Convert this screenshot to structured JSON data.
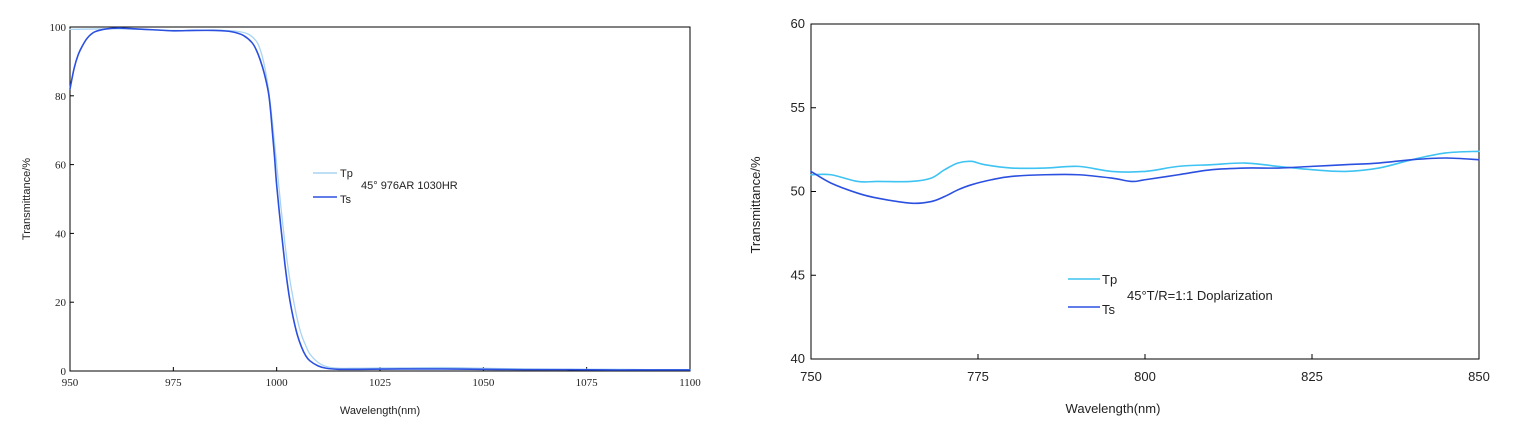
{
  "chart_data": [
    {
      "type": "line",
      "title": "",
      "xlabel": "Wavelength(nm)",
      "ylabel": "Transmittance/%",
      "xlim": [
        950,
        1100
      ],
      "ylim": [
        0,
        100
      ],
      "xticks": [
        950,
        975,
        1000,
        1025,
        1050,
        1075,
        1100
      ],
      "yticks": [
        0,
        20,
        40,
        60,
        80,
        100
      ],
      "legend_position": "center",
      "annotation": "45° 976AR 1030HR",
      "series": [
        {
          "name": "Tp",
          "color": "#a9d4f2",
          "x": [
            950,
            955,
            960,
            965,
            970,
            975,
            980,
            985,
            990,
            993,
            995,
            996,
            997,
            998,
            999,
            1000,
            1001,
            1002,
            1003,
            1004,
            1005,
            1006,
            1007,
            1008,
            1010,
            1012,
            1015,
            1020,
            1030,
            1040,
            1050,
            1060,
            1070,
            1080,
            1090,
            1100
          ],
          "y": [
            99.3,
            99.4,
            99.5,
            99.4,
            99.2,
            99.0,
            99.0,
            99.1,
            98.8,
            98.0,
            96.0,
            93.5,
            89.0,
            82.0,
            72.0,
            60.0,
            48.0,
            37.0,
            28.0,
            21.0,
            15.0,
            10.5,
            7.5,
            5.0,
            2.5,
            1.3,
            0.8,
            0.8,
            0.9,
            1.0,
            0.8,
            0.6,
            0.5,
            0.5,
            0.4,
            0.4
          ]
        },
        {
          "name": "Ts",
          "color": "#2b50e0",
          "x": [
            950,
            951,
            952,
            953,
            954,
            955,
            956,
            958,
            960,
            962,
            965,
            970,
            975,
            980,
            985,
            988,
            990,
            992,
            994,
            995,
            996,
            997,
            998,
            998.5,
            999,
            999.5,
            1000,
            1001,
            1002,
            1003,
            1004,
            1005,
            1006,
            1007,
            1008,
            1010,
            1012,
            1015,
            1020,
            1030,
            1040,
            1050,
            1060,
            1070,
            1080,
            1090,
            1100
          ],
          "y": [
            82.0,
            88.0,
            92.0,
            94.5,
            96.5,
            97.8,
            98.6,
            99.3,
            99.6,
            99.7,
            99.5,
            99.2,
            98.9,
            99.0,
            99.0,
            98.8,
            98.4,
            97.5,
            95.5,
            93.5,
            90.5,
            86.5,
            81.0,
            76.0,
            69.0,
            62.0,
            54.0,
            42.0,
            31.0,
            22.0,
            15.5,
            10.5,
            7.0,
            4.5,
            3.0,
            1.5,
            0.8,
            0.5,
            0.5,
            0.6,
            0.6,
            0.5,
            0.4,
            0.4,
            0.3,
            0.3,
            0.3
          ]
        }
      ]
    },
    {
      "type": "line",
      "title": "",
      "xlabel": "Wavelength(nm)",
      "ylabel": "Transmittance/%",
      "xlim": [
        750,
        850
      ],
      "ylim": [
        40,
        60
      ],
      "xticks": [
        750,
        775,
        800,
        825,
        850
      ],
      "yticks": [
        40,
        45,
        50,
        55,
        60
      ],
      "legend_position": "bottom-left",
      "annotation": "45°T/R=1:1 Doplarization",
      "series": [
        {
          "name": "Tp",
          "color": "#3ec3f2",
          "x": [
            750,
            753,
            757,
            760,
            765,
            768,
            770,
            772,
            774,
            776,
            780,
            785,
            790,
            795,
            800,
            805,
            810,
            815,
            820,
            825,
            830,
            835,
            840,
            845,
            850
          ],
          "y": [
            51.0,
            51.0,
            50.6,
            50.6,
            50.6,
            50.8,
            51.3,
            51.7,
            51.8,
            51.6,
            51.4,
            51.4,
            51.5,
            51.2,
            51.2,
            51.5,
            51.6,
            51.7,
            51.5,
            51.3,
            51.2,
            51.4,
            51.9,
            52.3,
            52.4
          ]
        },
        {
          "name": "Ts",
          "color": "#2b50e0",
          "x": [
            750,
            753,
            757,
            760,
            765,
            768,
            770,
            772,
            774,
            777,
            780,
            785,
            790,
            795,
            798,
            800,
            805,
            810,
            815,
            820,
            825,
            830,
            835,
            840,
            845,
            850
          ],
          "y": [
            51.2,
            50.5,
            49.9,
            49.6,
            49.3,
            49.4,
            49.7,
            50.1,
            50.4,
            50.7,
            50.9,
            51.0,
            51.0,
            50.8,
            50.6,
            50.7,
            51.0,
            51.3,
            51.4,
            51.4,
            51.5,
            51.6,
            51.7,
            51.9,
            52.0,
            51.9
          ]
        }
      ]
    }
  ]
}
